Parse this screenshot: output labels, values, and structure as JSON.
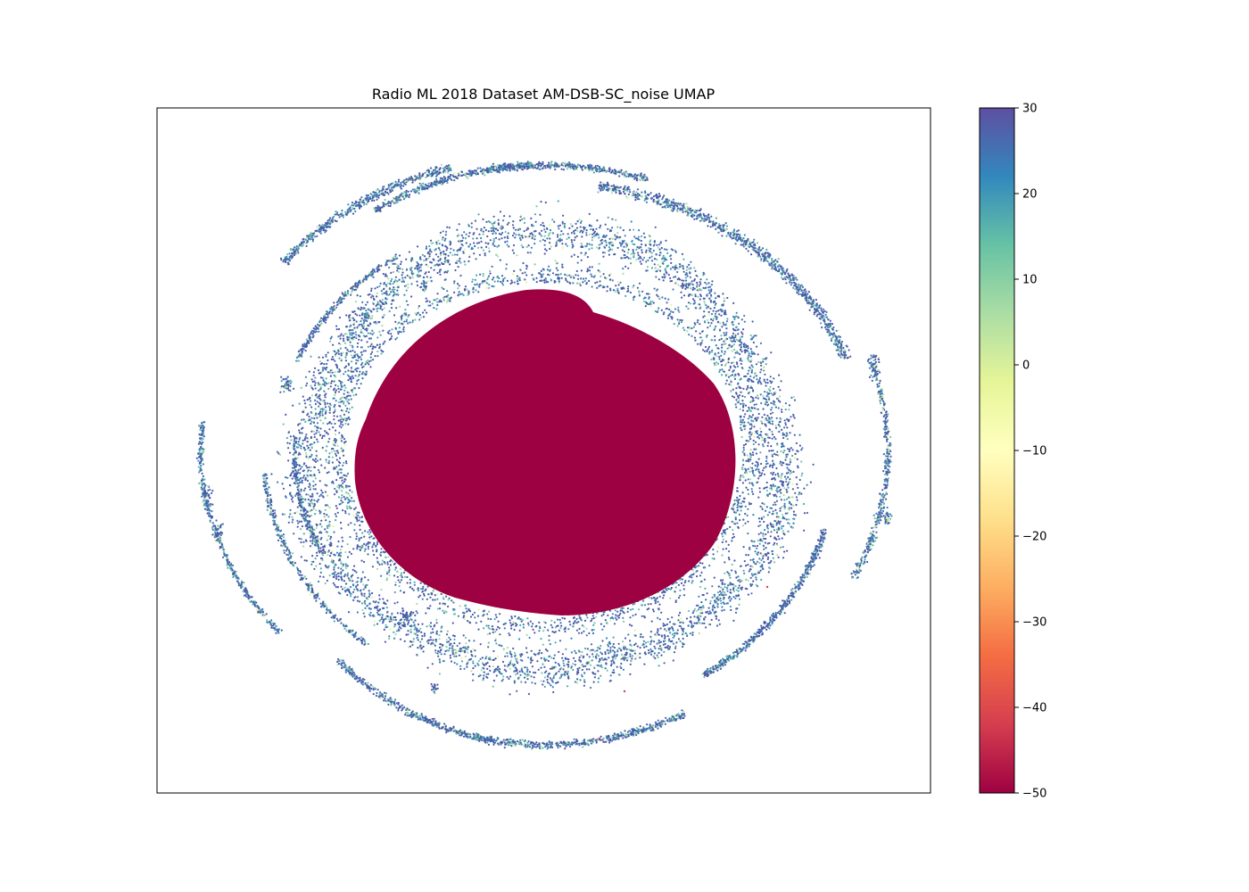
{
  "chart_data": {
    "type": "scatter",
    "title": "Radio ML 2018 Dataset AM-DSB-SC_noise UMAP",
    "xlabel": "",
    "ylabel": "",
    "x_ticks_visible": false,
    "y_ticks_visible": false,
    "grid": false,
    "colormap": "Spectral",
    "colorbar": {
      "range": [
        -50,
        30
      ],
      "ticks": [
        30,
        20,
        10,
        0,
        -10,
        -20,
        -30,
        -40,
        -50
      ],
      "tick_labels": [
        "30",
        "20",
        "10",
        "0",
        "−10",
        "−20",
        "−30",
        "−40",
        "−50"
      ]
    },
    "regions": [
      {
        "name": "central dense cluster",
        "value": -50,
        "color": "#9e0142"
      },
      {
        "name": "inner ring",
        "value_range": [
          0,
          30
        ]
      },
      {
        "name": "outer arcs",
        "value_range": [
          0,
          30
        ]
      }
    ]
  }
}
